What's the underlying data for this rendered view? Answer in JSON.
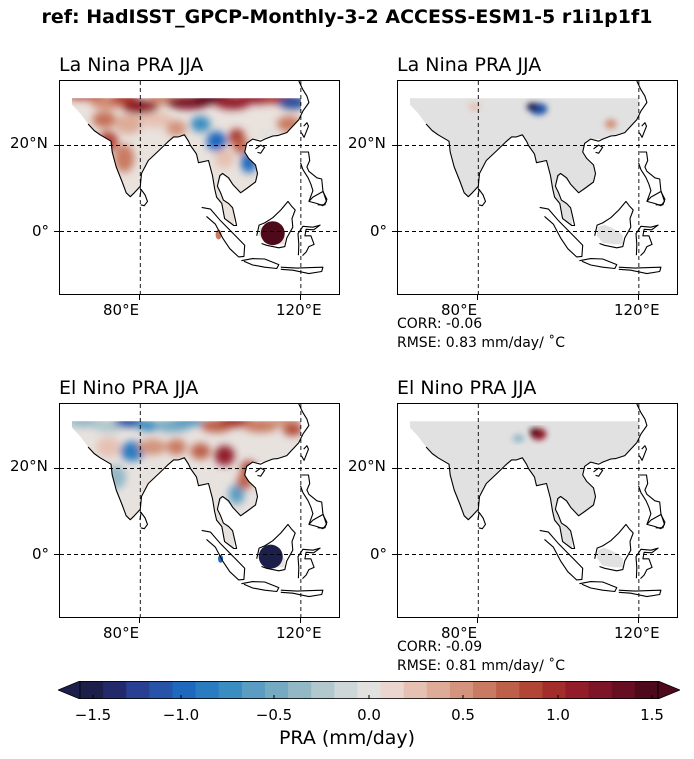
{
  "figure": {
    "suptitle": "ref: HadISST_GPCP-Monthly-3-2 ACCESS-ESM1-5 r1i1p1f1"
  },
  "panels": [
    {
      "title": "La Nina PRA JJA",
      "kind": "field",
      "xticks": [
        "80°E",
        "120°E"
      ],
      "yticks": [
        "20°N",
        "0°"
      ]
    },
    {
      "title": "La Nina PRA JJA",
      "kind": "field",
      "xticks": [
        "80°E",
        "120°E"
      ],
      "yticks": [
        "20°N",
        "0°"
      ],
      "corr_label": "CORR: -0.06",
      "rmse_label": "RMSE: 0.83 mm/day/ ˚C"
    },
    {
      "title": "El Nino PRA JJA",
      "kind": "field",
      "xticks": [
        "80°E",
        "120°E"
      ],
      "yticks": [
        "20°N",
        "0°"
      ]
    },
    {
      "title": "El Nino PRA JJA",
      "kind": "field",
      "xticks": [
        "80°E",
        "120°E"
      ],
      "yticks": [
        "20°N",
        "0°"
      ],
      "corr_label": "CORR: -0.09",
      "rmse_label": "RMSE: 0.81 mm/day/ ˚C"
    }
  ],
  "colorbar": {
    "label": "PRA (mm/day)",
    "ticks": [
      "−1.5",
      "−1.0",
      "−0.5",
      "0.0",
      "0.5",
      "1.0",
      "1.5"
    ],
    "tick_values": [
      -1.5,
      -1.0,
      -0.5,
      0.0,
      0.5,
      1.0,
      1.5
    ],
    "range": [
      -1.5,
      1.5
    ],
    "extend": "both",
    "colors": [
      "#1c1f4a",
      "#232a6b",
      "#283f92",
      "#2754a8",
      "#1e68bd",
      "#2a7cc0",
      "#3b8cc0",
      "#5a9cc2",
      "#76aac3",
      "#93b8c5",
      "#b1c8cd",
      "#cdd6d8",
      "#e3e1df",
      "#ead6cf",
      "#e6c1b3",
      "#ddab98",
      "#d3937c",
      "#c97a62",
      "#be6049",
      "#b14636",
      "#a32d2b",
      "#921c2a",
      "#7d1428",
      "#670e22",
      "#4e0a1a"
    ]
  },
  "chart_data": [
    {
      "type": "heatmap",
      "title": "La Nina PRA JJA",
      "x_ticks": [
        "80°E",
        "120°E"
      ],
      "y_ticks": [
        "20°N",
        "0°"
      ],
      "lon_range": [
        60,
        130
      ],
      "lat_range": [
        -15,
        35
      ],
      "value_range": [
        -1.5,
        1.5
      ]
    },
    {
      "type": "heatmap",
      "title": "La Nina PRA JJA",
      "x_ticks": [
        "80°E",
        "120°E"
      ],
      "y_ticks": [
        "20°N",
        "0°"
      ],
      "lon_range": [
        60,
        130
      ],
      "lat_range": [
        -15,
        35
      ],
      "corr": -0.06,
      "rmse": 0.83,
      "rmse_units": "mm/day/ ˚C"
    },
    {
      "type": "heatmap",
      "title": "El Nino PRA JJA",
      "x_ticks": [
        "80°E",
        "120°E"
      ],
      "y_ticks": [
        "20°N",
        "0°"
      ],
      "lon_range": [
        60,
        130
      ],
      "lat_range": [
        -15,
        35
      ],
      "value_range": [
        -1.5,
        1.5
      ]
    },
    {
      "type": "heatmap",
      "title": "El Nino PRA JJA",
      "x_ticks": [
        "80°E",
        "120°E"
      ],
      "y_ticks": [
        "20°N",
        "0°"
      ],
      "lon_range": [
        60,
        130
      ],
      "lat_range": [
        -15,
        35
      ],
      "corr": -0.09,
      "rmse": 0.81,
      "rmse_units": "mm/day/ ˚C"
    }
  ]
}
